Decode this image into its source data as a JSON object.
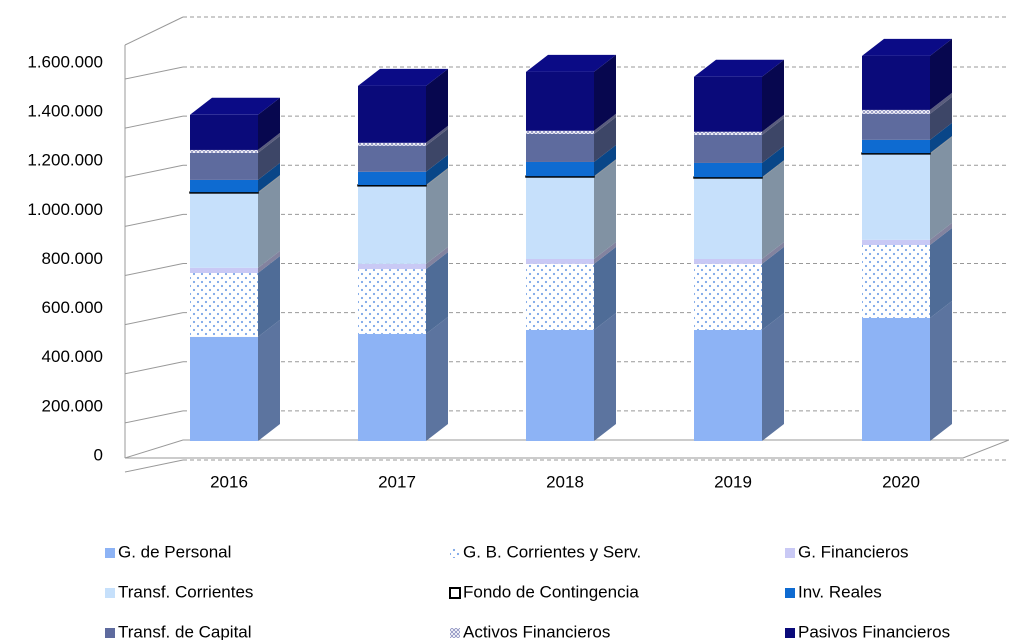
{
  "chart_data": {
    "type": "bar3d_stacked",
    "categories": [
      "2016",
      "2017",
      "2018",
      "2019",
      "2020"
    ],
    "series": [
      {
        "name": "G. de Personal",
        "color": "#8db3f5",
        "values": [
          424000,
          436000,
          452000,
          452000,
          501000
        ]
      },
      {
        "name": "G. B. Corrientes y Serv.",
        "color": "#7aa6e8",
        "pattern": "dots",
        "values": [
          260000,
          264000,
          269000,
          269000,
          297000
        ]
      },
      {
        "name": "G. Financieros",
        "color": "#c9c9f5",
        "values": [
          21000,
          21000,
          20000,
          20000,
          21000
        ]
      },
      {
        "name": "Transf. Corrientes",
        "color": "#c6e0fb",
        "values": [
          305000,
          318000,
          334000,
          330000,
          350000
        ]
      },
      {
        "name": "Fondo de Contingencia",
        "color": "#000000",
        "pattern": "outline",
        "values": [
          3000,
          3000,
          3000,
          3000,
          3000
        ]
      },
      {
        "name": "Inv. Reales",
        "color": "#0e6bd1",
        "values": [
          50000,
          54000,
          58000,
          58000,
          54000
        ]
      },
      {
        "name": "Transf. de Capital",
        "color": "#5e6b9e",
        "values": [
          110000,
          106000,
          114000,
          114000,
          106000
        ]
      },
      {
        "name": "Activos Financieros",
        "color": "#8a8fc0",
        "pattern": "crosshatch",
        "values": [
          12000,
          12000,
          13000,
          13000,
          16000
        ]
      },
      {
        "name": "Pasivos Financieros",
        "color": "#0a0a7a",
        "values": [
          143000,
          232000,
          240000,
          224000,
          220000
        ]
      }
    ],
    "ylim": [
      0,
      1600000
    ],
    "yticks": [
      0,
      {
        "value": 200000,
        "label": "200.000"
      },
      {
        "value": 400000,
        "label": "400.000"
      },
      {
        "value": 600000,
        "label": "600.000"
      },
      {
        "value": 800000,
        "label": "800.000"
      },
      {
        "value": 1000000,
        "label": "1.000.000"
      },
      {
        "value": 1200000,
        "label": "1.200.000"
      },
      {
        "value": 1400000,
        "label": "1.400.000"
      },
      {
        "value": 1600000,
        "label": "1.600.000"
      }
    ],
    "grid": true,
    "legend": "bottom"
  }
}
